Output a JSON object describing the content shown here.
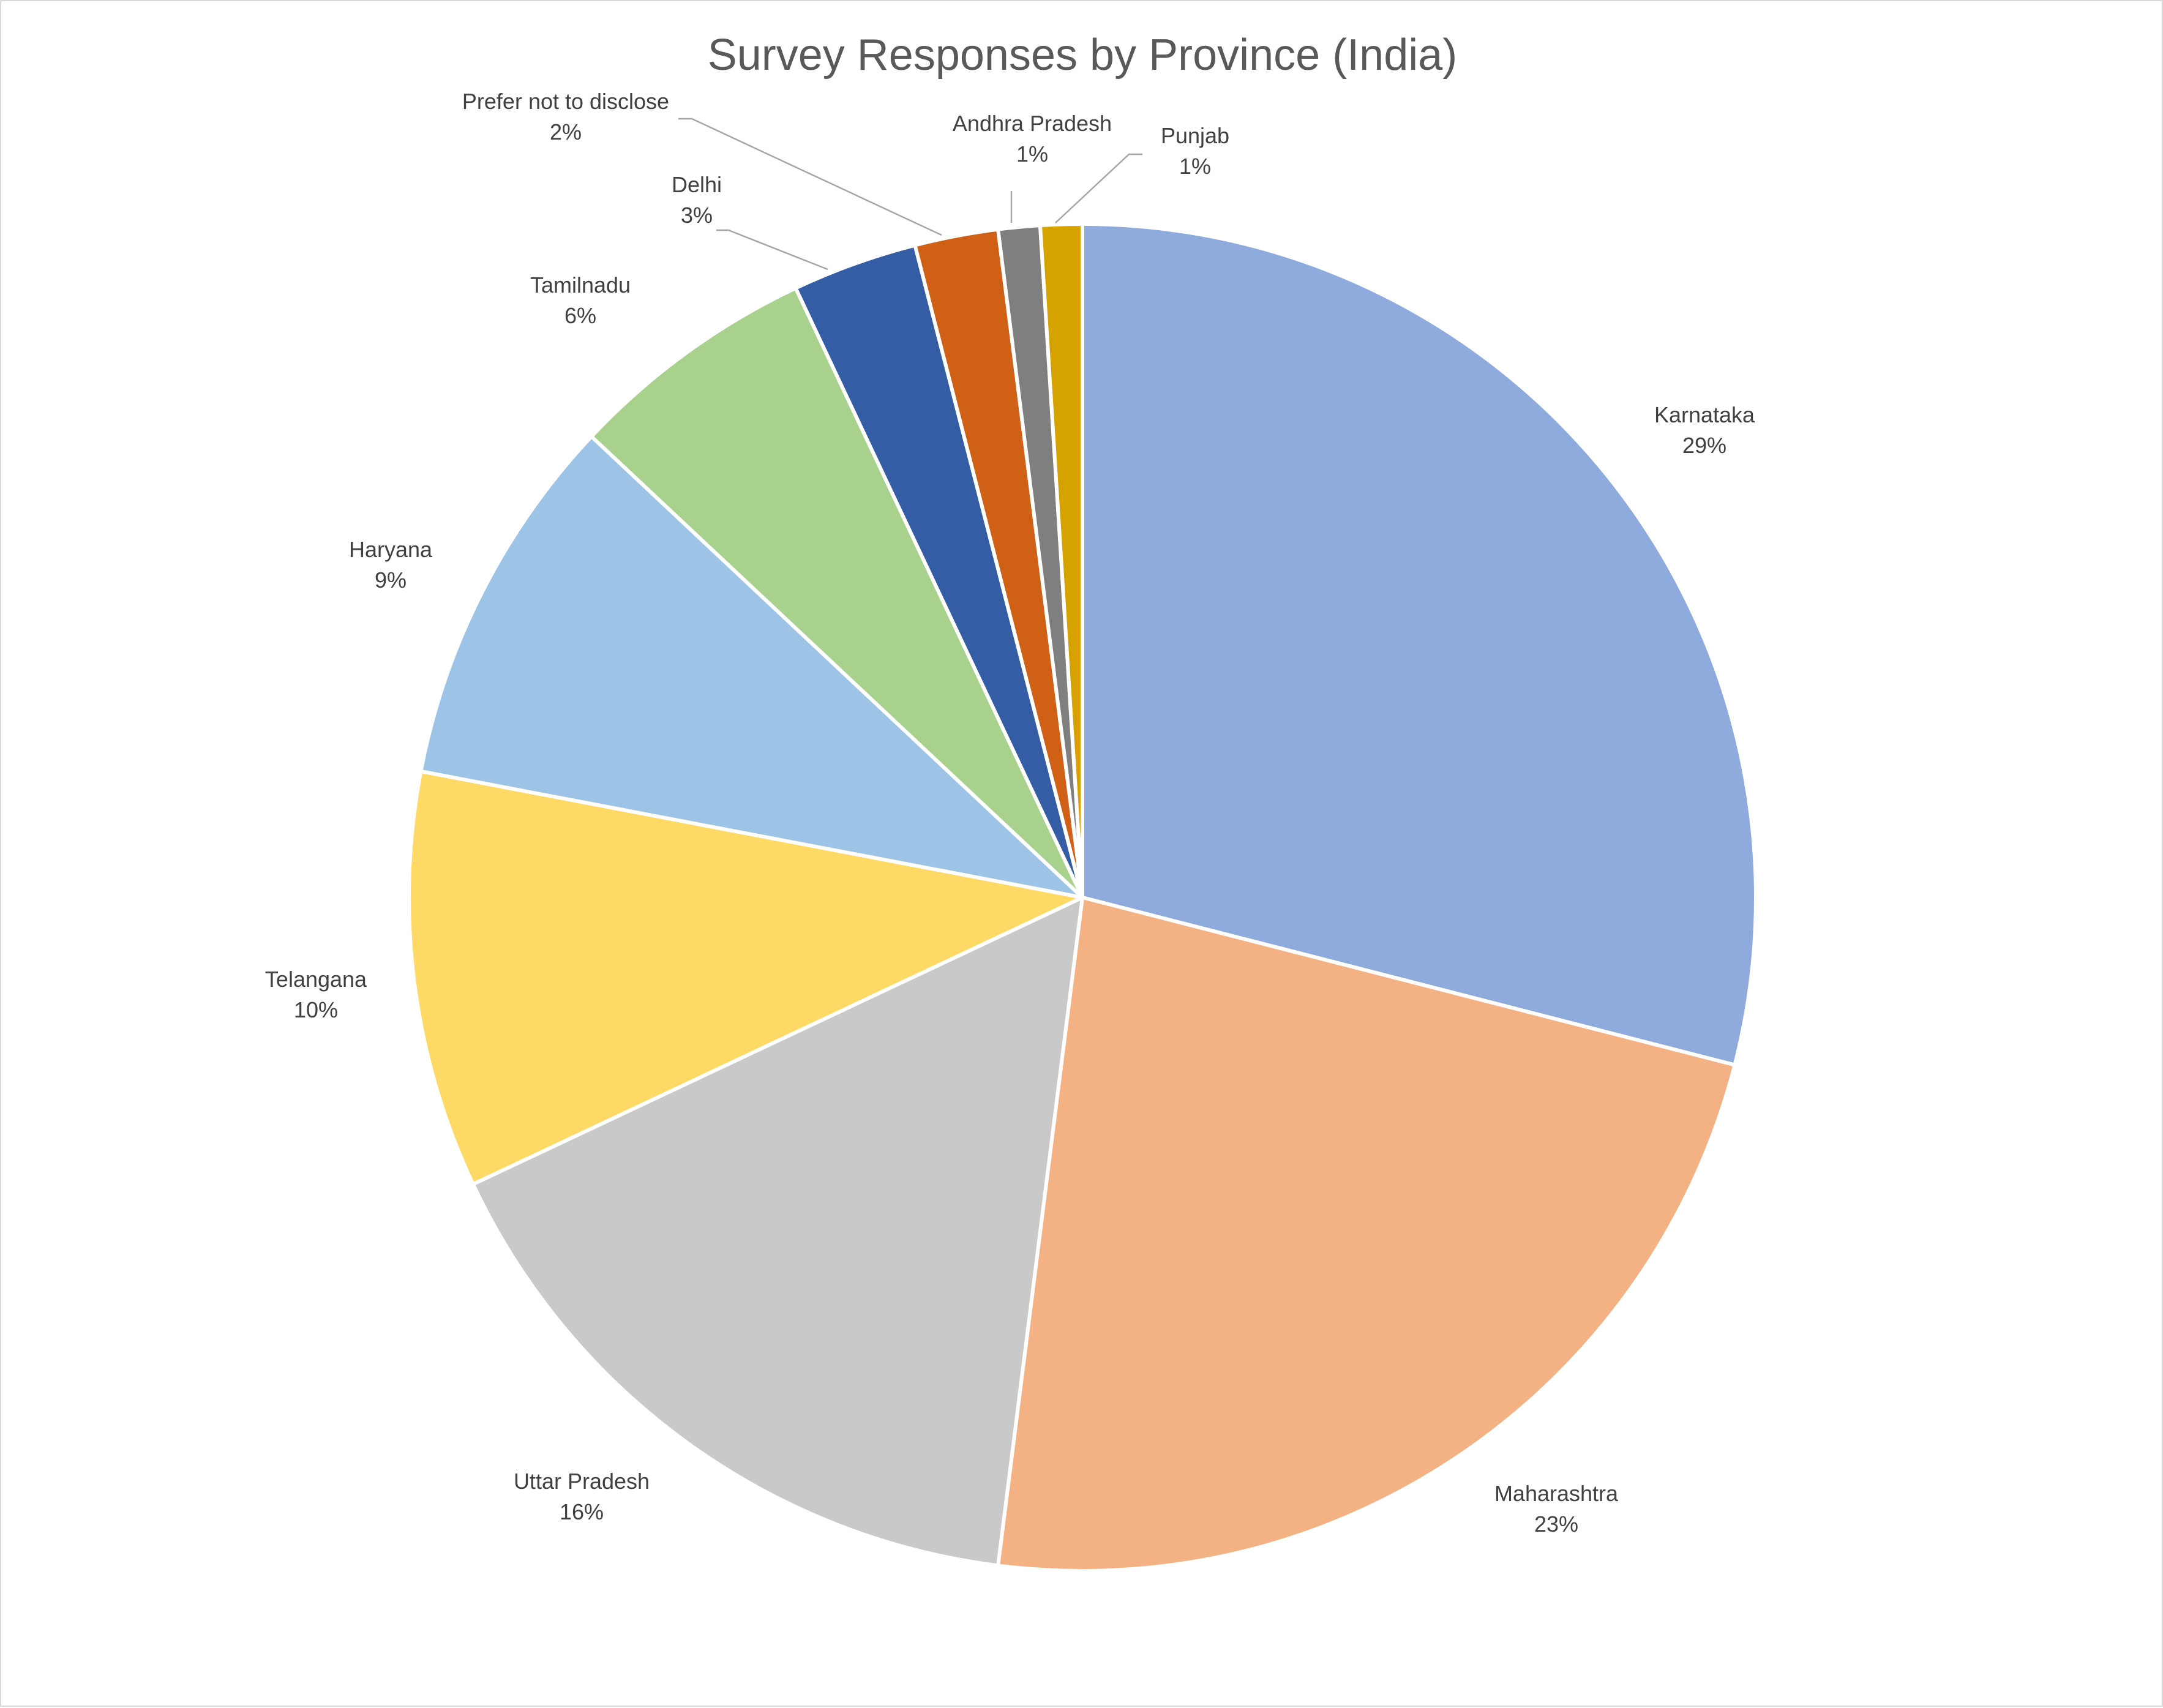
{
  "chart_data": {
    "type": "pie",
    "title": "Survey Responses by Province (India)",
    "start_angle_deg": 0,
    "direction": "clockwise",
    "legend": "none",
    "slices": [
      {
        "label": "Karnataka",
        "value": 29,
        "display": "29%",
        "color": "#8FAADC"
      },
      {
        "label": "Maharashtra",
        "value": 23,
        "display": "23%",
        "color": "#F4B183"
      },
      {
        "label": "Uttar Pradesh",
        "value": 16,
        "display": "16%",
        "color": "#C9C9C9"
      },
      {
        "label": "Telangana",
        "value": 10,
        "display": "10%",
        "color": "#FFD966"
      },
      {
        "label": "Haryana",
        "value": 9,
        "display": "9%",
        "color": "#9DC3E6"
      },
      {
        "label": "Tamilnadu",
        "value": 6,
        "display": "6%",
        "color": "#A9D18E"
      },
      {
        "label": "Delhi",
        "value": 3,
        "display": "3%",
        "color": "#355DA6"
      },
      {
        "label": "Prefer not to disclose",
        "value": 2,
        "display": "2%",
        "color": "#D06015"
      },
      {
        "label": "Andhra Pradesh",
        "value": 1,
        "display": "1%",
        "color": "#7F7F7F"
      },
      {
        "label": "Punjab",
        "value": 1,
        "display": "1%",
        "color": "#D6A200"
      }
    ]
  }
}
